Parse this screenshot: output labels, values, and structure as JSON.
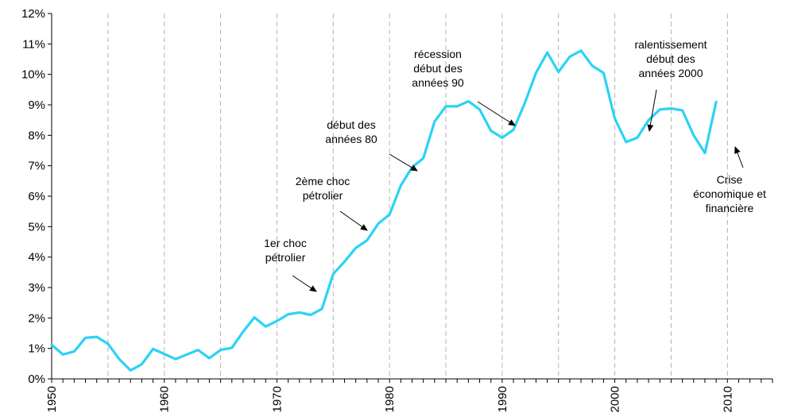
{
  "chart_data": {
    "type": "line",
    "title": "",
    "xlabel": "",
    "ylabel": "",
    "xlim": [
      1950,
      2014
    ],
    "ylim": [
      0,
      12
    ],
    "x_ticks": [
      "1950",
      "1960",
      "1970",
      "1980",
      "1990",
      "2000",
      "2010"
    ],
    "y_ticks": [
      "0%",
      "1%",
      "2%",
      "3%",
      "4%",
      "5%",
      "6%",
      "7%",
      "8%",
      "9%",
      "10%",
      "11%",
      "12%"
    ],
    "grid": "vertical dashed every 5 years",
    "line_color": "#2bd3f5",
    "series": [
      {
        "name": "",
        "x": [
          1950,
          1951,
          1952,
          1953,
          1954,
          1955,
          1956,
          1957,
          1958,
          1959,
          1960,
          1961,
          1962,
          1963,
          1964,
          1965,
          1966,
          1967,
          1968,
          1969,
          1970,
          1971,
          1972,
          1973,
          1974,
          1975,
          1976,
          1977,
          1978,
          1979,
          1980,
          1981,
          1982,
          1983,
          1984,
          1985,
          1986,
          1987,
          1988,
          1989,
          1990,
          1991,
          1992,
          1993,
          1994,
          1995,
          1996,
          1997,
          1998,
          1999,
          2000,
          2001,
          2002,
          2003,
          2004,
          2005,
          2006,
          2007,
          2008,
          2009
        ],
        "y": [
          1.12,
          0.8,
          0.9,
          1.35,
          1.38,
          1.15,
          0.65,
          0.28,
          0.48,
          0.98,
          0.82,
          0.65,
          0.8,
          0.95,
          0.68,
          0.95,
          1.02,
          1.55,
          2.02,
          1.72,
          1.9,
          2.12,
          2.18,
          2.1,
          2.3,
          3.45,
          3.85,
          4.3,
          4.55,
          5.1,
          5.4,
          6.35,
          6.95,
          7.25,
          8.45,
          8.95,
          8.95,
          9.12,
          8.85,
          8.15,
          7.92,
          8.18,
          9.05,
          10.05,
          10.72,
          10.08,
          10.58,
          10.78,
          10.28,
          10.05,
          8.55,
          7.78,
          7.92,
          8.5,
          8.85,
          8.88,
          8.82,
          8.0,
          7.42,
          9.1
        ]
      }
    ],
    "annotations": [
      {
        "lines": [
          "1er choc",
          "pétrolier"
        ]
      },
      {
        "lines": [
          "2ème choc",
          "pétrolier"
        ]
      },
      {
        "lines": [
          "début des",
          "années 80"
        ]
      },
      {
        "lines": [
          "récession",
          "début des",
          "années 90"
        ]
      },
      {
        "lines": [
          "ralentissement",
          "début des",
          "années 2000"
        ]
      },
      {
        "lines": [
          "Crise",
          "économique et",
          "financière"
        ]
      }
    ]
  }
}
